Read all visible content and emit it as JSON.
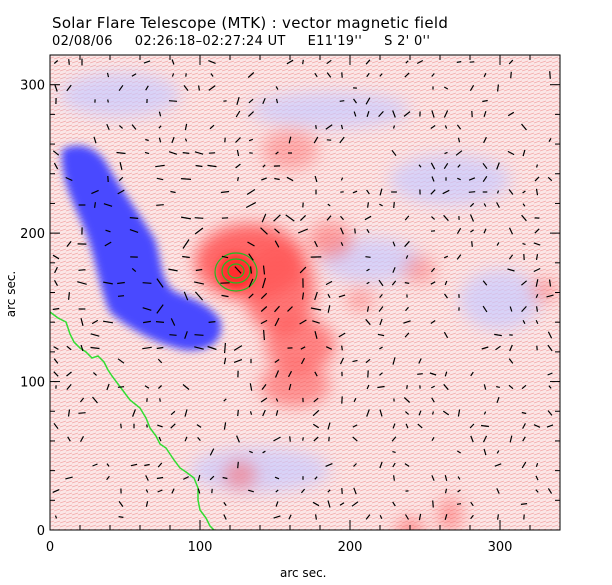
{
  "header": {
    "title": "Solar Flare Telescope (MTK) : vector magnetic field",
    "date": "02/08/06",
    "time_range": "02:26:18–02:27:24 UT",
    "pos_e": "E11'19''",
    "pos_s": "S 2' 0''"
  },
  "axes": {
    "xlabel": "arc sec.",
    "ylabel": "arc sec.",
    "xlim": [
      0,
      340
    ],
    "ylim": [
      0,
      320
    ],
    "xticks": [
      0,
      100,
      200,
      300
    ],
    "yticks": [
      0,
      100,
      200,
      300
    ]
  },
  "colors": {
    "positive_field": "#ff5a5a",
    "negative_field": "#4a4aff",
    "neutral_line": "#33dd33",
    "vectors": "#000000"
  }
}
